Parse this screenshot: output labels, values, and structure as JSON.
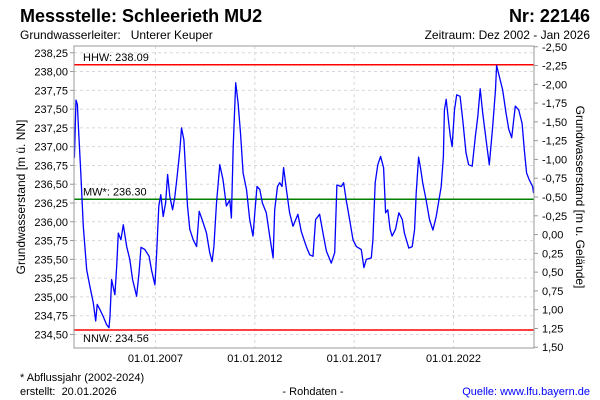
{
  "header": {
    "title": "Messstelle: Schleerieth MU2",
    "number": "Nr: 22146",
    "aquifer": "Grundwasserleiter:   Unterer Keuper",
    "period": "Zeitraum: Dez 2002 - Jan 2026"
  },
  "footer": {
    "note": "* Abflussjahr (2002-2024)",
    "created": "erstellt:  20.01.2026",
    "datatype": "- Rohdaten -",
    "source": "Quelle: www.lfu.bayern.de"
  },
  "colors": {
    "series": "#0000ff",
    "extreme": "#ff0000",
    "mean": "#008000",
    "source_link": "#0000ff"
  },
  "chart_data": {
    "type": "line",
    "title": "Messstelle: Schleerieth MU2",
    "ylabel": "Grundwasserstand [m ü. NN]",
    "ylabel_right": "Grundwasserstand [m u. Gelände]",
    "xlim": [
      2002.9,
      2026.05
    ],
    "ylim": [
      234.32,
      238.34
    ],
    "right_axis_reference_level": 235.83,
    "grid": true,
    "y_ticks": [
      234.5,
      234.75,
      235.0,
      235.25,
      235.5,
      235.75,
      236.0,
      236.25,
      236.5,
      236.75,
      237.0,
      237.25,
      237.5,
      237.75,
      238.0,
      238.25
    ],
    "y_tick_labels": [
      "234,50",
      "234,75",
      "235,00",
      "235,25",
      "235,50",
      "235,75",
      "236,00",
      "236,25",
      "236,50",
      "236,75",
      "237,00",
      "237,25",
      "237,50",
      "237,75",
      "238,00",
      "238,25"
    ],
    "y_right_ticks": [
      -2.5,
      -2.25,
      -2.0,
      -1.75,
      -1.5,
      -1.25,
      -1.0,
      -0.75,
      -0.5,
      -0.25,
      0,
      0.25,
      0.5,
      0.75,
      1.0,
      1.25,
      1.5
    ],
    "y_right_tick_labels": [
      "-2,50",
      "-2,25",
      "-2,00",
      "-1,75",
      "-1,50",
      "-1,25",
      "-1,00",
      "-0,75",
      "-0,50",
      "-0,25",
      "0,00",
      "0,25",
      "0,50",
      "0,75",
      "1,00",
      "1,25",
      "1,50"
    ],
    "x_ticks": [
      2007.0,
      2012.0,
      2017.0,
      2022.0
    ],
    "x_tick_labels": [
      "01.01.2007",
      "01.01.2012",
      "01.01.2017",
      "01.01.2022"
    ],
    "reference_lines": [
      {
        "name": "HHW",
        "label": "HHW: 238.09",
        "value": 238.09,
        "color": "#ff0000"
      },
      {
        "name": "MW",
        "label": "MW*: 236.30",
        "value": 236.3,
        "color": "#008000"
      },
      {
        "name": "NNW",
        "label": "NNW: 234.56",
        "value": 234.56,
        "color": "#ff0000"
      }
    ],
    "series": [
      {
        "name": "Grundwasserstand",
        "x": [
          2002.92,
          2003.0,
          2003.07,
          2003.12,
          2003.24,
          2003.37,
          2003.54,
          2003.7,
          2003.87,
          2003.99,
          2004.07,
          2004.21,
          2004.37,
          2004.54,
          2004.66,
          2004.71,
          2004.79,
          2004.96,
          2005.05,
          2005.13,
          2005.26,
          2005.38,
          2005.55,
          2005.71,
          2005.85,
          2006.05,
          2006.17,
          2006.27,
          2006.47,
          2006.68,
          2006.8,
          2006.97,
          2007.06,
          2007.17,
          2007.27,
          2007.39,
          2007.51,
          2007.61,
          2007.72,
          2007.86,
          2007.98,
          2008.09,
          2008.23,
          2008.31,
          2008.43,
          2008.53,
          2008.61,
          2008.73,
          2008.9,
          2009.07,
          2009.2,
          2009.37,
          2009.57,
          2009.73,
          2009.85,
          2009.94,
          2010.07,
          2010.24,
          2010.4,
          2010.57,
          2010.74,
          2010.82,
          2010.91,
          2011.04,
          2011.16,
          2011.28,
          2011.41,
          2011.58,
          2011.74,
          2011.91,
          2012.0,
          2012.11,
          2012.25,
          2012.38,
          2012.58,
          2012.75,
          2012.92,
          2013.0,
          2013.14,
          2013.25,
          2013.37,
          2013.45,
          2013.59,
          2013.75,
          2013.92,
          2014.17,
          2014.34,
          2014.59,
          2014.76,
          2014.93,
          2015.06,
          2015.26,
          2015.43,
          2015.6,
          2015.85,
          2016.02,
          2016.13,
          2016.35,
          2016.47,
          2016.6,
          2016.77,
          2016.94,
          2017.11,
          2017.36,
          2017.49,
          2017.61,
          2017.86,
          2017.94,
          2018.06,
          2018.19,
          2018.33,
          2018.48,
          2018.58,
          2018.69,
          2018.81,
          2018.91,
          2019.08,
          2019.25,
          2019.42,
          2019.53,
          2019.75,
          2019.92,
          2020.04,
          2020.12,
          2020.24,
          2020.34,
          2020.45,
          2020.62,
          2020.79,
          2020.96,
          2021.13,
          2021.38,
          2021.49,
          2021.54,
          2021.63,
          2021.76,
          2021.84,
          2021.93,
          2022.05,
          2022.16,
          2022.33,
          2022.46,
          2022.63,
          2022.76,
          2022.94,
          2023.1,
          2023.22,
          2023.34,
          2023.47,
          2023.64,
          2023.8,
          2023.97,
          2024.11,
          2024.17,
          2024.31,
          2024.47,
          2024.64,
          2024.78,
          2024.93,
          2025.01,
          2025.11,
          2025.28,
          2025.45,
          2025.56,
          2025.68,
          2025.81,
          2025.98,
          2026.03
        ],
        "y": [
          236.85,
          237.62,
          237.56,
          237.27,
          236.65,
          235.94,
          235.36,
          235.14,
          234.92,
          234.68,
          234.9,
          234.83,
          234.74,
          234.63,
          234.59,
          234.74,
          235.23,
          235.03,
          235.41,
          235.85,
          235.76,
          235.96,
          235.67,
          235.5,
          235.23,
          235.01,
          235.32,
          235.66,
          235.63,
          235.54,
          235.36,
          235.16,
          235.59,
          236.21,
          236.36,
          236.07,
          236.25,
          236.63,
          236.34,
          236.16,
          236.34,
          236.6,
          236.96,
          237.25,
          237.09,
          236.6,
          236.21,
          235.9,
          235.76,
          235.67,
          236.14,
          236.01,
          235.85,
          235.59,
          235.47,
          235.67,
          236.25,
          236.76,
          236.56,
          236.21,
          236.29,
          236.05,
          237.0,
          237.85,
          237.58,
          237.18,
          236.65,
          236.43,
          236.03,
          235.81,
          236.12,
          236.47,
          236.43,
          236.25,
          236.12,
          235.81,
          235.52,
          236.16,
          236.47,
          236.52,
          236.47,
          236.72,
          236.43,
          236.12,
          235.94,
          236.1,
          235.87,
          235.67,
          235.56,
          235.54,
          236.03,
          236.1,
          235.85,
          235.61,
          235.45,
          235.59,
          236.49,
          236.47,
          236.52,
          236.29,
          236.03,
          235.76,
          235.67,
          235.63,
          235.39,
          235.5,
          235.52,
          235.76,
          236.52,
          236.76,
          236.87,
          236.72,
          236.12,
          236.16,
          235.9,
          235.81,
          235.9,
          236.12,
          236.03,
          235.85,
          235.65,
          235.67,
          235.9,
          236.38,
          236.86,
          236.72,
          236.52,
          236.29,
          236.03,
          235.89,
          236.07,
          236.47,
          236.87,
          237.49,
          237.63,
          237.31,
          237.14,
          237.0,
          237.49,
          237.69,
          237.67,
          237.36,
          236.92,
          236.76,
          236.74,
          237.14,
          237.4,
          237.77,
          237.45,
          237.09,
          236.76,
          237.27,
          237.76,
          238.08,
          237.93,
          237.76,
          237.45,
          237.23,
          237.12,
          237.31,
          237.54,
          237.49,
          237.31,
          236.96,
          236.65,
          236.56,
          236.47,
          236.38
        ]
      }
    ]
  }
}
